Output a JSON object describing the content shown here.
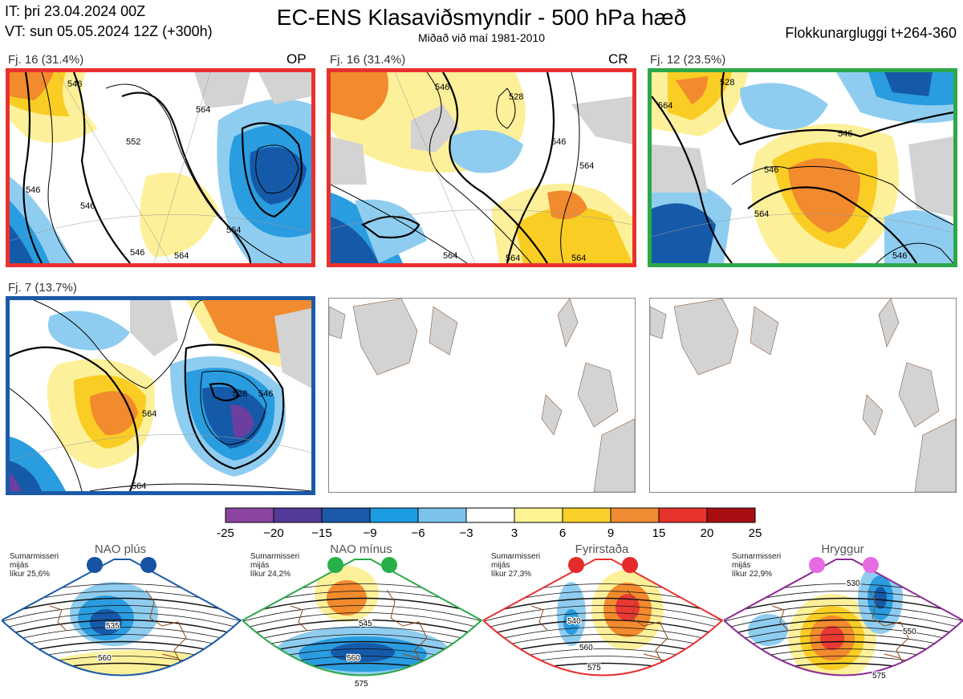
{
  "header": {
    "init_time": "IT: þri 23.04.2024 00Z",
    "valid_time": "VT: sun 05.05.2024 12Z  (+300h)",
    "title": "EC-ENS Klasaviðsmyndir - 500 hPa hæð",
    "subtitle": "Miðað við maí 1981-2010",
    "cluster_window": "Flokkunargluggi t+264-360"
  },
  "panels": [
    {
      "label": "Fj. 16 (31.4%)",
      "tag": "OP",
      "border_color": "#e8312f",
      "contours": [
        "546",
        "546",
        "546",
        "552",
        "564",
        "546",
        "564",
        "564"
      ]
    },
    {
      "label": "Fj. 16 (31.4%)",
      "tag": "CR",
      "border_color": "#e8312f",
      "contours": [
        "546",
        "528",
        "546",
        "564",
        "564",
        "564",
        "564"
      ]
    },
    {
      "label": "Fj. 12 (23.5%)",
      "tag": "",
      "border_color": "#2ca84a",
      "contours": [
        "564",
        "528",
        "546",
        "546",
        "564",
        "546"
      ]
    },
    {
      "label": "Fj. 7 (13.7%)",
      "tag": "",
      "border_color": "#1b5aa6",
      "contours": [
        "564",
        "528",
        "546",
        "564"
      ]
    }
  ],
  "colors": {
    "land": "#d3d3d3",
    "coast": "#8a5a3a",
    "neg_light": "#8fcdf0",
    "neg_mid": "#2a9ce0",
    "neg_dark": "#155aa8",
    "pos_light": "#fdf09a",
    "pos_mid": "#f9cd24",
    "pos_dark": "#f28a2e",
    "pos_red": "#ea3833"
  },
  "chart_data": {
    "type": "heatmap",
    "title": "EC-ENS Klasaviðsmyndir - 500 hPa hæð",
    "colorbar": {
      "ticks": [
        "-25",
        "−20",
        "−15",
        "−9",
        "−6",
        "−3",
        "3",
        "6",
        "9",
        "15",
        "20",
        "25"
      ],
      "colors": [
        "#8b45a0",
        "#523a98",
        "#1b5aa8",
        "#1c9ce2",
        "#7cc3ec",
        "#ffffff",
        "#fcf393",
        "#fbd02a",
        "#f18b33",
        "#e8332c",
        "#a80f13"
      ]
    }
  },
  "regimes": [
    {
      "name": "NAO plús",
      "note": [
        "Sumarmisseri",
        "mijás",
        "líkur 25,6%"
      ],
      "color": "#1b5aa6",
      "dot": "#1553a3",
      "contours": [
        "535",
        "560"
      ]
    },
    {
      "name": "NAO mínus",
      "note": [
        "Sumarmisseri",
        "mijás",
        "líkur 24,2%"
      ],
      "color": "#2ca84a",
      "dot": "#27b04a",
      "contours": [
        "545",
        "560",
        "575"
      ]
    },
    {
      "name": "Fyrirstaða",
      "note": [
        "Sumarmisseri",
        "mijás",
        "líkur 27,3%"
      ],
      "color": "#e8312f",
      "dot": "#e52b2b",
      "contours": [
        "540",
        "560",
        "575"
      ]
    },
    {
      "name": "Hryggur",
      "note": [
        "Sumarmisseri",
        "mijás",
        "líkur 22,9%"
      ],
      "color": "#8a2c92",
      "dot": "#e86ae3",
      "contours": [
        "530",
        "550",
        "575"
      ]
    }
  ]
}
